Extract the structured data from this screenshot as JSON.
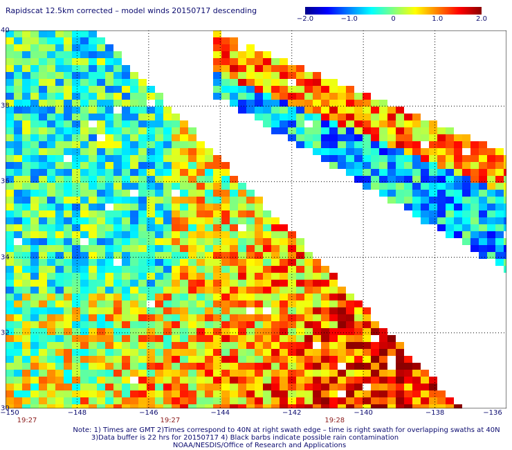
{
  "title": "Rapidscat 12.5km corrected – model winds 20150717 descending",
  "colorbar": {
    "ticks": [
      "−2.0",
      "−1.0",
      "0",
      "1.0",
      "2.0"
    ],
    "range": [
      -2.0,
      2.0
    ],
    "colors": [
      "#00008b",
      "#0000ff",
      "#0080ff",
      "#00ffff",
      "#80ff80",
      "#ffff00",
      "#ff8000",
      "#ff0000",
      "#8b0000"
    ]
  },
  "map": {
    "lat_range": [
      30,
      40
    ],
    "lon_range": [
      -150,
      -136
    ],
    "lat_labels": [
      "40",
      "38",
      "36",
      "34",
      "32",
      "30"
    ],
    "lon_labels": [
      "−150",
      "−148",
      "−146",
      "−144",
      "−142",
      "−140",
      "−138",
      "−136"
    ],
    "times": [
      "19:27",
      "19:27",
      "19:28"
    ],
    "time_lons": [
      -149.4,
      -145.4,
      -140.8
    ],
    "grid_color": "#000000",
    "background": "#ffffff"
  },
  "notes": [
    "Note: 1) Times are GMT 2)Times correspond to 40N at right swath edge – time is right swath for overlapping swaths at 40N",
    "3)Data buffer is 22 hrs for 20150717 4) Black barbs indicate possible rain contamination",
    "NOAA/NESDIS/Office of Research and Applications"
  ]
}
